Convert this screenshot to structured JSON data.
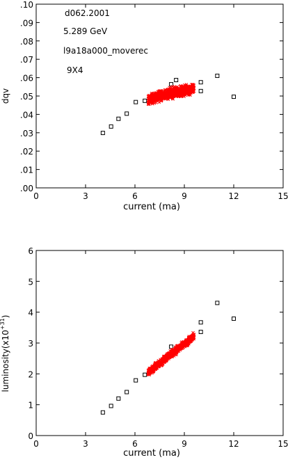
{
  "chart_data": [
    {
      "type": "scatter",
      "title": "",
      "xlabel": "current (ma)",
      "ylabel": "dqv",
      "xlim": [
        0,
        15
      ],
      "ylim": [
        0,
        0.1
      ],
      "xticks": [
        0,
        3,
        6,
        9,
        12,
        15
      ],
      "yticks": [
        0,
        0.01,
        0.02,
        0.03,
        0.04,
        0.05,
        0.06,
        0.07,
        0.08,
        0.09,
        0.1
      ],
      "xticklabels": [
        "0",
        "3",
        "6",
        "9",
        "12",
        "15"
      ],
      "yticklabels": [
        ".00",
        ".01",
        ".02",
        ".03",
        ".04",
        ".05",
        ".06",
        ".07",
        ".08",
        ".09",
        ".10"
      ],
      "grid": false,
      "annotations": [
        "d062.2001",
        "5.289 GeV",
        "l9a18a000_moverec",
        "9X4"
      ],
      "series": [
        {
          "marker": "square",
          "color": "#000000",
          "x": [
            4.05,
            4.55,
            5.0,
            5.5,
            6.05,
            6.6,
            7.4,
            8.2,
            8.5,
            10.0,
            10.0,
            11.0,
            12.0
          ],
          "y": [
            0.0299,
            0.0334,
            0.0376,
            0.0404,
            0.0467,
            0.0474,
            0.0486,
            0.0564,
            0.0587,
            0.0575,
            0.0527,
            0.061,
            0.0496
          ]
        },
        {
          "marker": "x",
          "color": "#ff0000",
          "x_range": [
            6.7,
            9.7
          ],
          "y_range": [
            0.0455,
            0.0563
          ],
          "x": [
            6.8,
            7.0,
            7.2,
            7.4,
            7.6,
            7.8,
            8.0,
            8.2,
            8.4,
            8.6,
            8.8,
            9.0,
            9.2,
            9.4,
            9.6
          ],
          "y": [
            0.0478,
            0.0485,
            0.049,
            0.0496,
            0.05,
            0.0505,
            0.051,
            0.0515,
            0.052,
            0.0523,
            0.0527,
            0.053,
            0.0533,
            0.0536,
            0.054
          ]
        }
      ]
    },
    {
      "type": "scatter",
      "title": "",
      "xlabel": "current (ma)",
      "ylabel": "luminosity",
      "ylabel_units": "(x10",
      "ylabel_exp": "+31",
      "ylabel_close": ")",
      "xlim": [
        0,
        15
      ],
      "ylim": [
        0,
        6
      ],
      "xticks": [
        0,
        3,
        6,
        9,
        12,
        15
      ],
      "yticks": [
        0,
        1,
        2,
        3,
        4,
        5,
        6
      ],
      "xticklabels": [
        "0",
        "3",
        "6",
        "9",
        "12",
        "15"
      ],
      "yticklabels": [
        "0",
        "1",
        "2",
        "3",
        "4",
        "5",
        "6"
      ],
      "grid": false,
      "series": [
        {
          "marker": "square",
          "color": "#000000",
          "x": [
            4.05,
            4.55,
            5.0,
            5.5,
            6.05,
            6.6,
            8.2,
            10.0,
            10.0,
            11.0,
            12.0
          ],
          "y": [
            0.75,
            0.96,
            1.2,
            1.41,
            1.79,
            1.97,
            2.88,
            3.67,
            3.36,
            4.3,
            3.79
          ]
        },
        {
          "marker": "x",
          "color": "#ff0000",
          "x_range": [
            6.7,
            9.7
          ],
          "y_range": [
            1.95,
            3.4
          ],
          "x": [
            6.8,
            7.0,
            7.2,
            7.4,
            7.6,
            7.8,
            8.0,
            8.2,
            8.4,
            8.6,
            8.8,
            9.0,
            9.2,
            9.4,
            9.6
          ],
          "y": [
            2.05,
            2.13,
            2.22,
            2.3,
            2.38,
            2.47,
            2.55,
            2.64,
            2.72,
            2.8,
            2.89,
            2.97,
            3.06,
            3.14,
            3.24
          ]
        }
      ]
    }
  ]
}
